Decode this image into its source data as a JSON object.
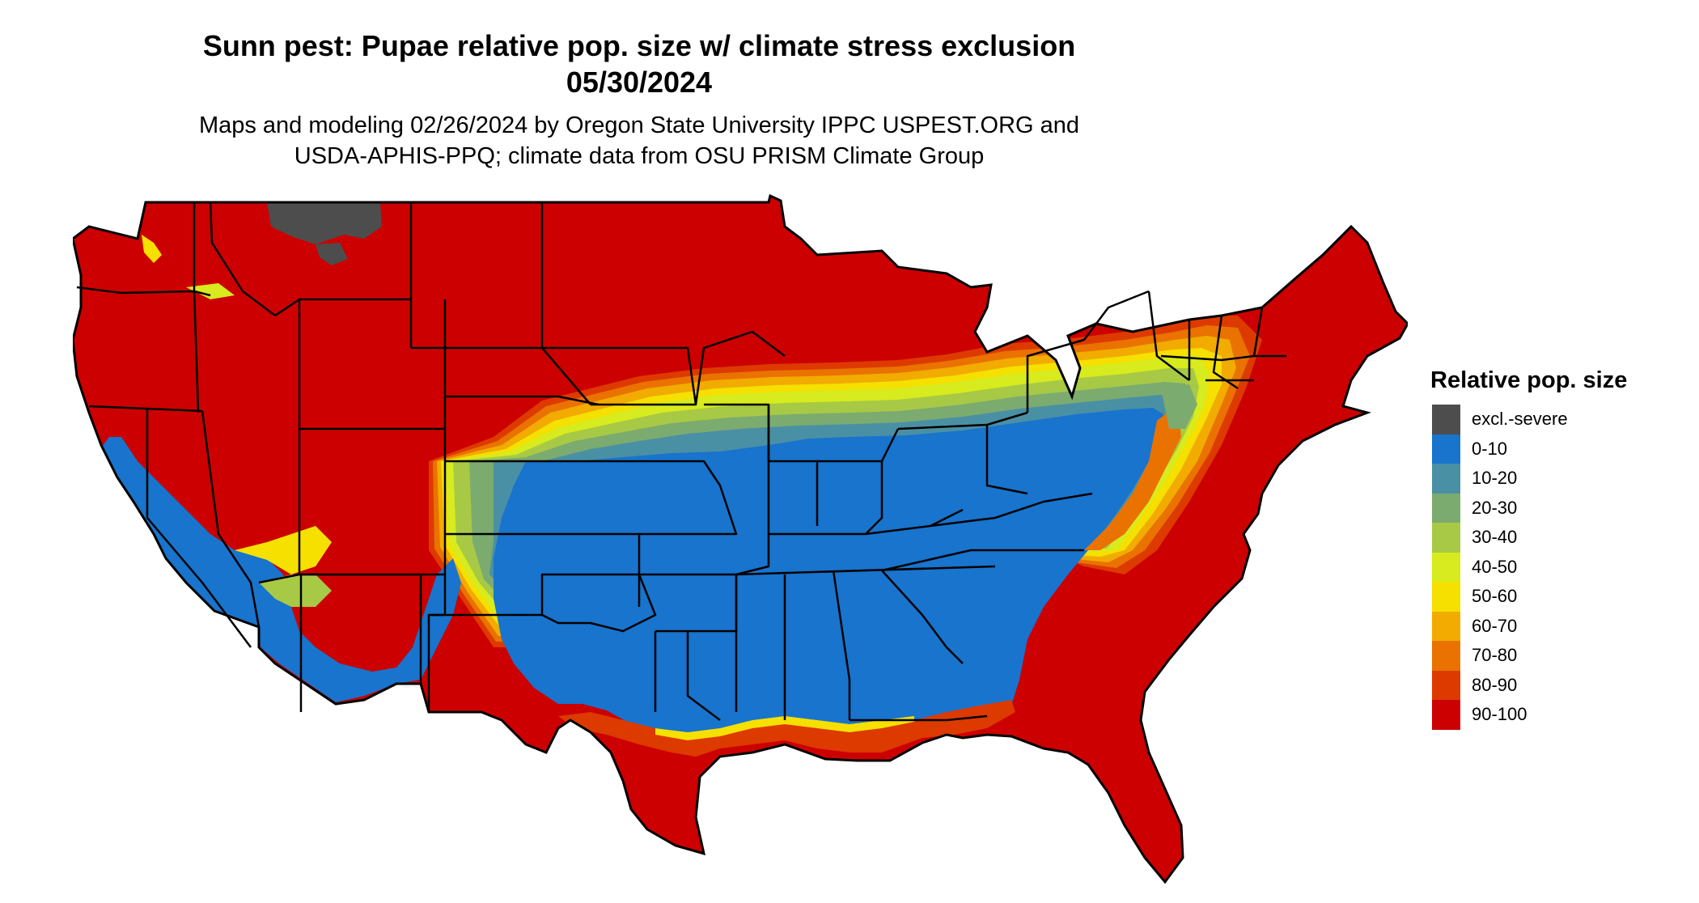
{
  "title": {
    "line1": "Sunn pest: Pupae relative pop. size w/ climate stress exclusion",
    "line2": "05/30/2024"
  },
  "subtitle": {
    "line1": "Maps and modeling 02/26/2024 by Oregon State University IPPC USPEST.ORG and",
    "line2": "USDA-APHIS-PPQ; climate data from OSU PRISM Climate Group"
  },
  "map": {
    "region": "United States (contiguous)",
    "palette": {
      "excl": "#4d4d4d",
      "c0_10": "#1874cd",
      "c10_20": "#4a90a4",
      "c20_30": "#7cab6f",
      "c30_40": "#a8c945",
      "c40_50": "#d7eb1e",
      "c50_60": "#f5e000",
      "c60_70": "#f2ab00",
      "c70_80": "#ea7200",
      "c80_90": "#dd3a00",
      "c90_100": "#cc0000"
    }
  },
  "legend": {
    "title": "Relative pop. size",
    "items": [
      {
        "label": "excl.-severe",
        "color": "#4d4d4d"
      },
      {
        "label": "0-10",
        "color": "#1874cd"
      },
      {
        "label": "10-20",
        "color": "#4a90a4"
      },
      {
        "label": "20-30",
        "color": "#7cab6f"
      },
      {
        "label": "30-40",
        "color": "#a8c945"
      },
      {
        "label": "40-50",
        "color": "#d7eb1e"
      },
      {
        "label": "50-60",
        "color": "#f5e000"
      },
      {
        "label": "60-70",
        "color": "#f2ab00"
      },
      {
        "label": "70-80",
        "color": "#ea7200"
      },
      {
        "label": "80-90",
        "color": "#dd3a00"
      },
      {
        "label": "90-100",
        "color": "#cc0000"
      }
    ]
  }
}
